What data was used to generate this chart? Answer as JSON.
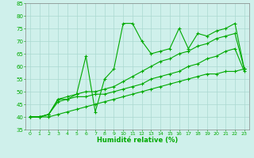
{
  "title": "",
  "xlabel": "Humidité relative (%)",
  "ylabel": "",
  "bg_color": "#cff0eb",
  "grid_color": "#aad8d0",
  "line_color": "#00aa00",
  "marker_color": "#00aa00",
  "xlim": [
    -0.5,
    23.5
  ],
  "ylim": [
    35,
    85
  ],
  "yticks": [
    35,
    40,
    45,
    50,
    55,
    60,
    65,
    70,
    75,
    80,
    85
  ],
  "xticks": [
    0,
    1,
    2,
    3,
    4,
    5,
    6,
    7,
    8,
    9,
    10,
    11,
    12,
    13,
    14,
    15,
    16,
    17,
    18,
    19,
    20,
    21,
    22,
    23
  ],
  "series": [
    [
      40,
      40,
      41,
      47,
      47,
      49,
      64,
      42,
      55,
      59,
      77,
      77,
      70,
      65,
      66,
      67,
      75,
      67,
      73,
      72,
      74,
      75,
      77,
      59
    ],
    [
      40,
      40,
      41,
      47,
      48,
      49,
      50,
      50,
      51,
      52,
      54,
      56,
      58,
      60,
      62,
      63,
      65,
      66,
      68,
      69,
      71,
      72,
      73,
      59
    ],
    [
      40,
      40,
      41,
      46,
      47,
      48,
      48,
      49,
      49,
      50,
      51,
      52,
      53,
      55,
      56,
      57,
      58,
      60,
      61,
      63,
      64,
      66,
      67,
      58
    ],
    [
      40,
      40,
      40,
      41,
      42,
      43,
      44,
      45,
      46,
      47,
      48,
      49,
      50,
      51,
      52,
      53,
      54,
      55,
      56,
      57,
      57,
      58,
      58,
      59
    ]
  ]
}
